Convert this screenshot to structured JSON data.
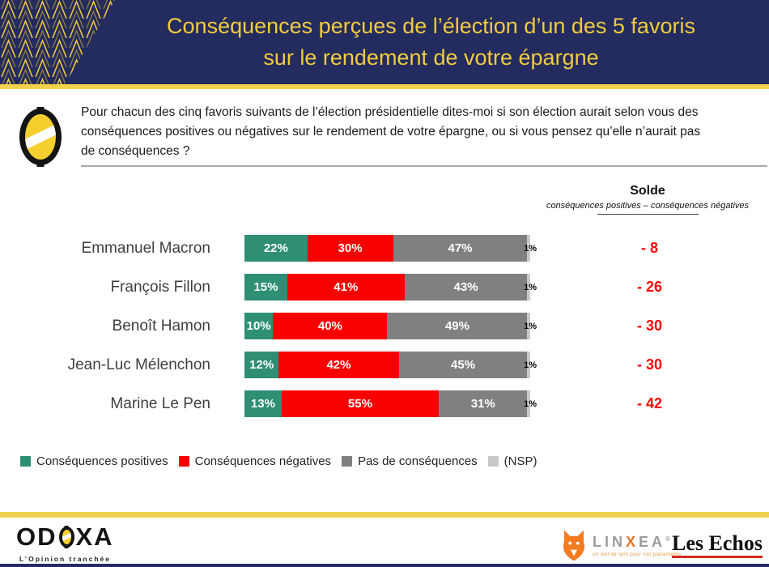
{
  "header": {
    "title_line1": "Conséquences perçues de l’élection d’un des 5 favoris",
    "title_line2": "sur le rendement de votre épargne"
  },
  "question": {
    "text": "Pour chacun des cinq favoris suivants de l’élection présidentielle dites-moi si son élection aurait selon vous des conséquences positives ou négatives sur le rendement de votre épargne, ou si vous pensez qu’elle n’aurait pas de conséquences ?"
  },
  "solde_header": {
    "title": "Solde",
    "subtitle": "conséquences positives – conséquences négatives"
  },
  "chart_data": {
    "type": "bar",
    "orientation": "horizontal-stacked",
    "unit": "%",
    "categories": [
      "Emmanuel Macron",
      "François Fillon",
      "Benoît Hamon",
      "Jean-Luc Mélenchon",
      "Marine Le Pen"
    ],
    "series": [
      {
        "name": "Conséquences positives",
        "color": "#2E8F75",
        "values": [
          22,
          15,
          10,
          12,
          13
        ]
      },
      {
        "name": "Conséquences négatives",
        "color": "#F80000",
        "values": [
          30,
          41,
          40,
          42,
          55
        ]
      },
      {
        "name": "Pas de conséquences",
        "color": "#808080",
        "values": [
          47,
          43,
          49,
          45,
          31
        ]
      },
      {
        "name": "(NSP)",
        "color": "#C9C9C9",
        "values": [
          1,
          1,
          1,
          1,
          1
        ]
      }
    ],
    "solde_values": [
      "- 8",
      "- 26",
      "- 30",
      "- 30",
      "- 42"
    ],
    "xlim": [
      0,
      100
    ],
    "legend_position": "bottom",
    "value_labels": "inside-white, NSP label black outside"
  },
  "footer": {
    "odoxa": {
      "name_left": "OD",
      "name_right": "XA",
      "tagline": "L’Opinion tranchée"
    },
    "linxea": {
      "part1": "LIN",
      "x": "X",
      "part2": "EA",
      "reg": "®",
      "tagline": "un oeil de lynx pour vos placements"
    },
    "lesechos": {
      "label": "Les Echos"
    }
  },
  "colors": {
    "header_bg": "#242B5E",
    "accent_yellow": "#F2D24B",
    "positive": "#2E8F75",
    "negative": "#F80000",
    "neutral": "#808080",
    "nsp": "#C9C9C9",
    "solde_red": "#FE0000"
  }
}
